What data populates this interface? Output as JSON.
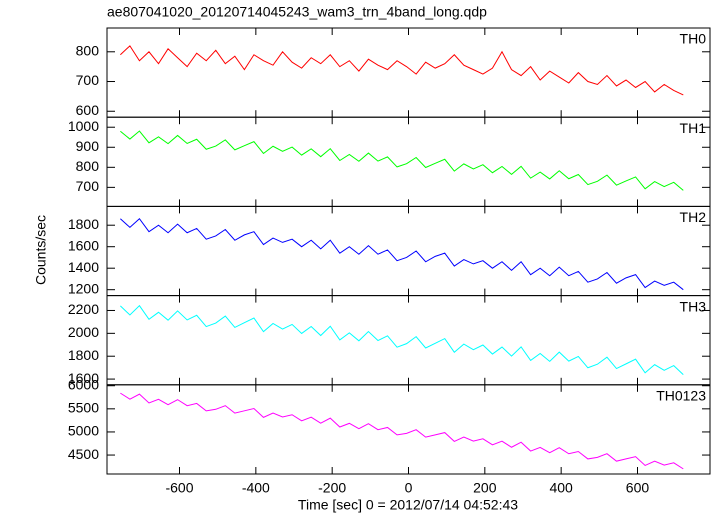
{
  "chart_data": [
    {
      "type": "line",
      "title": "ae807041020_20120714045243_wam3_trn_4band_long.qdp",
      "x": [
        -755,
        -730,
        -705,
        -680,
        -655,
        -630,
        -605,
        -580,
        -555,
        -530,
        -505,
        -480,
        -455,
        -430,
        -405,
        -380,
        -355,
        -330,
        -305,
        -280,
        -255,
        -230,
        -205,
        -180,
        -155,
        -130,
        -105,
        -80,
        -55,
        -30,
        -5,
        20,
        45,
        70,
        95,
        120,
        145,
        170,
        195,
        220,
        245,
        270,
        295,
        320,
        345,
        370,
        395,
        420,
        445,
        470,
        495,
        520,
        545,
        570,
        595,
        620,
        645,
        670,
        695,
        720
      ],
      "series": [
        {
          "name": "TH0",
          "color": "#ff0000",
          "values": [
            790,
            820,
            770,
            800,
            760,
            810,
            780,
            750,
            795,
            770,
            805,
            760,
            785,
            740,
            790,
            770,
            755,
            800,
            765,
            745,
            780,
            760,
            790,
            750,
            770,
            735,
            775,
            755,
            740,
            770,
            750,
            725,
            765,
            745,
            760,
            790,
            755,
            740,
            725,
            745,
            800,
            740,
            720,
            750,
            705,
            735,
            715,
            695,
            730,
            700,
            690,
            720,
            685,
            705,
            680,
            700,
            665,
            690,
            670,
            655
          ]
        }
      ],
      "xlim": [
        -790,
        790
      ],
      "xticks": [
        -600,
        -400,
        -200,
        0,
        200,
        400,
        600
      ],
      "ylim": [
        580,
        880
      ],
      "yticks": [
        600,
        700,
        800
      ]
    },
    {
      "type": "line",
      "x": [
        -755,
        -730,
        -705,
        -680,
        -655,
        -630,
        -605,
        -580,
        -555,
        -530,
        -505,
        -480,
        -455,
        -430,
        -405,
        -380,
        -355,
        -330,
        -305,
        -280,
        -255,
        -230,
        -205,
        -180,
        -155,
        -130,
        -105,
        -80,
        -55,
        -30,
        -5,
        20,
        45,
        70,
        95,
        120,
        145,
        170,
        195,
        220,
        245,
        270,
        295,
        320,
        345,
        370,
        395,
        420,
        445,
        470,
        495,
        520,
        545,
        570,
        595,
        620,
        645,
        670,
        695,
        720
      ],
      "series": [
        {
          "name": "TH1",
          "color": "#00ff00",
          "values": [
            980,
            941,
            981,
            922,
            952,
            918,
            959,
            919,
            940,
            890,
            906,
            937,
            887,
            908,
            928,
            869,
            905,
            880,
            901,
            861,
            892,
            853,
            893,
            834,
            864,
            830,
            871,
            831,
            852,
            802,
            818,
            849,
            799,
            820,
            840,
            781,
            817,
            792,
            813,
            773,
            804,
            765,
            805,
            746,
            776,
            742,
            783,
            743,
            764,
            714,
            730,
            761,
            711,
            732,
            752,
            693,
            729,
            704,
            725,
            685
          ]
        }
      ],
      "xlim": [
        -790,
        790
      ],
      "xticks": [
        -600,
        -400,
        -200,
        0,
        200,
        400,
        600
      ],
      "ylim": [
        605,
        1050
      ],
      "yticks": [
        700,
        800,
        900,
        1000
      ]
    },
    {
      "type": "line",
      "ylabel": "Counts/sec",
      "x": [
        -755,
        -730,
        -705,
        -680,
        -655,
        -630,
        -605,
        -580,
        -555,
        -530,
        -505,
        -480,
        -455,
        -430,
        -405,
        -380,
        -355,
        -330,
        -305,
        -280,
        -255,
        -230,
        -205,
        -180,
        -155,
        -130,
        -105,
        -80,
        -55,
        -30,
        -5,
        20,
        45,
        70,
        95,
        120,
        145,
        170,
        195,
        220,
        245,
        270,
        295,
        320,
        345,
        370,
        395,
        420,
        445,
        470,
        495,
        520,
        545,
        570,
        595,
        620,
        645,
        670,
        695,
        720
      ],
      "series": [
        {
          "name": "TH2",
          "color": "#0000ff",
          "values": [
            1860,
            1780,
            1860,
            1740,
            1800,
            1730,
            1810,
            1730,
            1770,
            1670,
            1700,
            1760,
            1660,
            1710,
            1740,
            1620,
            1680,
            1640,
            1670,
            1600,
            1660,
            1580,
            1660,
            1540,
            1600,
            1530,
            1610,
            1530,
            1570,
            1470,
            1500,
            1560,
            1460,
            1510,
            1540,
            1420,
            1480,
            1440,
            1470,
            1400,
            1460,
            1380,
            1460,
            1340,
            1400,
            1330,
            1410,
            1330,
            1370,
            1270,
            1300,
            1360,
            1260,
            1310,
            1340,
            1220,
            1280,
            1240,
            1270,
            1200
          ]
        }
      ],
      "xlim": [
        -790,
        790
      ],
      "xticks": [
        -600,
        -400,
        -200,
        0,
        200,
        400,
        600
      ],
      "ylim": [
        1145,
        1975
      ],
      "yticks": [
        1200,
        1400,
        1600,
        1800
      ]
    },
    {
      "type": "line",
      "x": [
        -755,
        -730,
        -705,
        -680,
        -655,
        -630,
        -605,
        -580,
        -555,
        -530,
        -505,
        -480,
        -455,
        -430,
        -405,
        -380,
        -355,
        -330,
        -305,
        -280,
        -255,
        -230,
        -205,
        -180,
        -155,
        -130,
        -105,
        -80,
        -55,
        -30,
        -5,
        20,
        45,
        70,
        95,
        120,
        145,
        170,
        195,
        220,
        245,
        270,
        295,
        320,
        345,
        370,
        395,
        420,
        445,
        470,
        495,
        520,
        545,
        570,
        595,
        620,
        645,
        670,
        695,
        720
      ],
      "series": [
        {
          "name": "TH3",
          "color": "#00ffff",
          "values": [
            2240,
            2161,
            2242,
            2123,
            2184,
            2115,
            2196,
            2117,
            2158,
            2059,
            2090,
            2151,
            2052,
            2093,
            2134,
            2015,
            2086,
            2037,
            2078,
            1999,
            2060,
            1981,
            2062,
            1943,
            2004,
            1935,
            2016,
            1937,
            1978,
            1879,
            1910,
            1971,
            1872,
            1913,
            1954,
            1835,
            1906,
            1857,
            1898,
            1819,
            1880,
            1801,
            1882,
            1763,
            1824,
            1755,
            1836,
            1757,
            1798,
            1699,
            1730,
            1791,
            1692,
            1733,
            1774,
            1655,
            1726,
            1677,
            1718,
            1639
          ]
        }
      ],
      "xlim": [
        -790,
        790
      ],
      "xticks": [
        -600,
        -400,
        -200,
        0,
        200,
        400,
        600
      ],
      "ylim": [
        1550,
        2330
      ],
      "yticks": [
        1600,
        1800,
        2000,
        2200
      ]
    },
    {
      "type": "line",
      "xlabel": "Time [sec] 0 = 2012/07/14 04:52:43",
      "x": [
        -755,
        -730,
        -705,
        -680,
        -655,
        -630,
        -605,
        -580,
        -555,
        -530,
        -505,
        -480,
        -455,
        -430,
        -405,
        -380,
        -355,
        -330,
        -305,
        -280,
        -255,
        -230,
        -205,
        -180,
        -155,
        -130,
        -105,
        -80,
        -55,
        -30,
        -5,
        20,
        45,
        70,
        95,
        120,
        145,
        170,
        195,
        220,
        245,
        270,
        295,
        320,
        345,
        370,
        395,
        420,
        445,
        470,
        495,
        520,
        545,
        570,
        595,
        620,
        645,
        670,
        695,
        720
      ],
      "series": [
        {
          "name": "TH0123",
          "color": "#ff00ff",
          "values": [
            5840,
            5709,
            5818,
            5627,
            5706,
            5590,
            5699,
            5568,
            5617,
            5456,
            5490,
            5569,
            5408,
            5457,
            5506,
            5315,
            5409,
            5323,
            5372,
            5241,
            5320,
            5189,
            5298,
            5107,
            5186,
            5070,
            5179,
            5048,
            5097,
            4936,
            4970,
            5049,
            4888,
            4937,
            4986,
            4795,
            4889,
            4803,
            4852,
            4721,
            4800,
            4669,
            4778,
            4587,
            4666,
            4550,
            4659,
            4528,
            4577,
            4416,
            4450,
            4529,
            4368,
            4417,
            4466,
            4275,
            4369,
            4283,
            4332,
            4201
          ]
        }
      ],
      "xlim": [
        -790,
        790
      ],
      "xticks": [
        -600,
        -400,
        -200,
        0,
        200,
        400,
        600
      ],
      "ylim": [
        4090,
        6020
      ],
      "yticks": [
        4500,
        5000,
        5500,
        6000
      ]
    }
  ]
}
